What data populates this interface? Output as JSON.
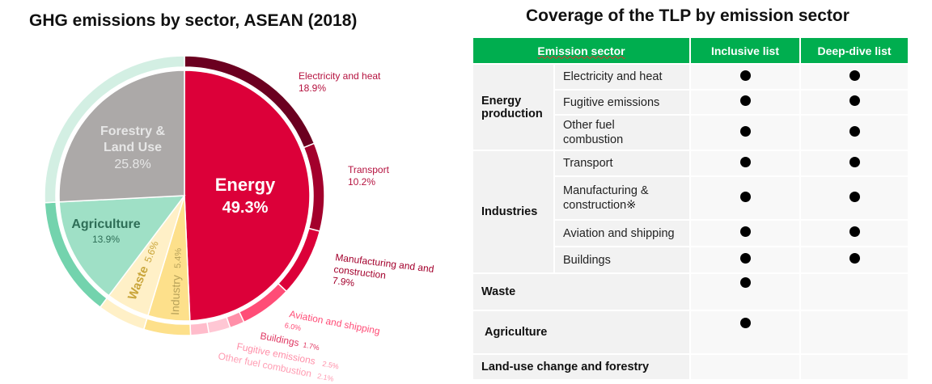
{
  "chart_title": "GHG emissions by sector, ASEAN (2018)",
  "table_title": "Coverage of the TLP by emission sector",
  "chart_data": {
    "type": "pie",
    "title": "GHG emissions by sector, ASEAN (2018)",
    "unit": "%",
    "inner": [
      {
        "name": "Energy",
        "value": 49.3,
        "label": "Energy",
        "value_label": "49.3%",
        "color": "#dc0039",
        "text_color": "#ffffff"
      },
      {
        "name": "Industry",
        "value": 5.4,
        "label": "Industry",
        "value_label": "5.4%",
        "color": "#fde08b",
        "text_color": "#b8a25a"
      },
      {
        "name": "Waste",
        "value": 5.6,
        "label": "Waste",
        "value_label": "5.6%",
        "color": "#fff0c7",
        "text_color": "#c9a53a"
      },
      {
        "name": "Agriculture",
        "value": 13.9,
        "label": "Agriculture",
        "value_label": "13.9%",
        "color": "#9fe0c6",
        "text_color": "#2e6e57"
      },
      {
        "name": "Forestry & Land Use",
        "value": 25.8,
        "label": "Forestry &\nLand Use",
        "value_label": "25.8%",
        "color": "#aca9a8",
        "text_color": "#e6e6e6"
      }
    ],
    "outer": [
      {
        "name": "Electricity and heat",
        "value": 18.9,
        "value_label": "18.9%",
        "color": "#6b0020",
        "text_color": "#b5123f"
      },
      {
        "name": "Transport",
        "value": 10.2,
        "value_label": "10.2%",
        "color": "#a3002c",
        "text_color": "#b5123f"
      },
      {
        "name": "Manufacturing and construction",
        "value": 7.9,
        "value_label": "7.9%",
        "color": "#dc0039",
        "text_color": "#a3002c"
      },
      {
        "name": "Aviation and shipping",
        "value": 6.0,
        "value_label": "6.0%",
        "color": "#ff4d77",
        "text_color": "#ff4d77"
      },
      {
        "name": "Buildings",
        "value": 1.7,
        "value_label": "1.7%",
        "color": "#ff8fa8",
        "text_color": "#e03a64"
      },
      {
        "name": "Fugitive emissions",
        "value": 2.5,
        "value_label": "2.5%",
        "color": "#ffc7d4",
        "text_color": "#ff8fa8"
      },
      {
        "name": "Other fuel combustion",
        "value": 2.1,
        "value_label": "2.1%",
        "color": "#ffbccb",
        "text_color": "#ff9db3"
      },
      {
        "name": "Industry",
        "value": 5.4,
        "color": "#fde08b"
      },
      {
        "name": "Waste",
        "value": 5.6,
        "color": "#fff0c7"
      },
      {
        "name": "Agriculture",
        "value": 13.9,
        "color": "#73d3ad"
      },
      {
        "name": "Forestry & Land Use",
        "value": 25.8,
        "color": "#d3efe3"
      }
    ]
  },
  "table": {
    "headers": [
      "Emission sector",
      "Inclusive list",
      "Deep-dive list"
    ],
    "header_color": "#00ae4f",
    "groups": [
      {
        "category": "Energy production",
        "rows": [
          {
            "sector": "Electricity and heat",
            "inclusive": true,
            "deep_dive": true
          },
          {
            "sector": "Fugitive emissions",
            "inclusive": true,
            "deep_dive": true
          },
          {
            "sector": "Other fuel combustion",
            "inclusive": true,
            "deep_dive": true
          }
        ]
      },
      {
        "category": "Industries",
        "rows": [
          {
            "sector": "Transport",
            "inclusive": true,
            "deep_dive": true
          },
          {
            "sector": "Manufacturing & construction※",
            "inclusive": true,
            "deep_dive": true
          },
          {
            "sector": "Aviation and shipping",
            "inclusive": true,
            "deep_dive": true
          },
          {
            "sector": "Buildings",
            "inclusive": true,
            "deep_dive": true
          }
        ]
      },
      {
        "category": "Waste",
        "rows": [
          {
            "sector": "",
            "inclusive": true,
            "deep_dive": false
          }
        ]
      },
      {
        "category": "Agriculture",
        "rows": [
          {
            "sector": "",
            "inclusive": true,
            "deep_dive": false
          }
        ]
      },
      {
        "category": "Land-use change and forestry",
        "rows": [
          {
            "sector": "",
            "inclusive": false,
            "deep_dive": false
          }
        ]
      }
    ]
  }
}
